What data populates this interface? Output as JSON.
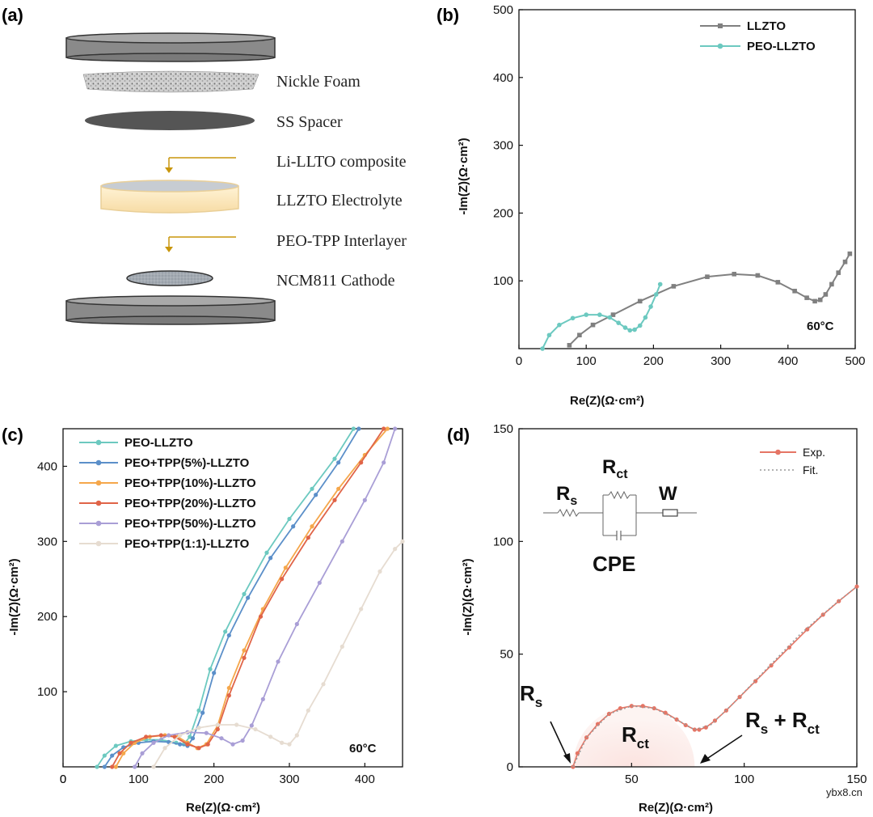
{
  "panels": {
    "a": "(a)",
    "b": "(b)",
    "c": "(c)",
    "d": "(d)"
  },
  "schematic": {
    "labels": [
      "Nickle Foam",
      "SS Spacer",
      "Li-LLTO composite",
      "LLZTO Electrolyte",
      "PEO-TPP Interlayer",
      "NCM811 Cathode"
    ],
    "colors": {
      "case": "#8a8a8a",
      "spacer": "#555555",
      "electrolyte": "#fbe6b8",
      "arrow": "#c8960c",
      "cathode": "#9aa3ad"
    }
  },
  "watermark": "ybx8.cn",
  "chart_data": [
    {
      "id": "b",
      "type": "line",
      "xlabel": "Re(Z)(Ω·cm²)",
      "ylabel": "-Im(Z)(Ω·cm²)",
      "xlim": [
        0,
        500
      ],
      "ylim": [
        0,
        500
      ],
      "xticks": [
        0,
        100,
        200,
        300,
        400,
        500
      ],
      "yticks": [
        100,
        200,
        300,
        400,
        500
      ],
      "annotation": "60°C",
      "legend_position": "top-right",
      "series": [
        {
          "name": "LLZTO",
          "color": "#808080",
          "marker": "square",
          "x": [
            75,
            90,
            110,
            140,
            180,
            230,
            280,
            320,
            355,
            385,
            410,
            428,
            440,
            448,
            456,
            465,
            475,
            485,
            492
          ],
          "y": [
            5,
            20,
            35,
            50,
            70,
            92,
            106,
            110,
            108,
            98,
            85,
            75,
            70,
            72,
            80,
            95,
            112,
            128,
            140
          ]
        },
        {
          "name": "PEO-LLZTO",
          "color": "#6cc9c0",
          "marker": "circle",
          "x": [
            35,
            45,
            60,
            80,
            100,
            120,
            135,
            148,
            158,
            165,
            172,
            180,
            188,
            196,
            204,
            210
          ],
          "y": [
            0,
            20,
            35,
            45,
            50,
            50,
            46,
            38,
            31,
            27,
            28,
            34,
            46,
            62,
            80,
            95
          ]
        }
      ]
    },
    {
      "id": "c",
      "type": "line",
      "xlabel": "Re(Z)(Ω·cm²)",
      "ylabel": "-Im(Z)(Ω·cm²)",
      "xlim": [
        0,
        450
      ],
      "ylim": [
        0,
        450
      ],
      "xticks": [
        0,
        100,
        200,
        300,
        400
      ],
      "yticks": [
        100,
        200,
        300,
        400
      ],
      "annotation": "60°C",
      "legend_position": "top-left",
      "series": [
        {
          "name": "PEO-LLZTO",
          "color": "#6cc9c0",
          "x": [
            45,
            55,
            70,
            90,
            110,
            130,
            150,
            160,
            168,
            180,
            195,
            215,
            240,
            270,
            300,
            330,
            360,
            385
          ],
          "y": [
            0,
            15,
            28,
            34,
            36,
            36,
            32,
            30,
            40,
            75,
            130,
            180,
            230,
            285,
            330,
            370,
            410,
            450
          ]
        },
        {
          "name": "PEO+TPP(5%)-LLZTO",
          "color": "#5b8fc9",
          "x": [
            55,
            65,
            80,
            100,
            120,
            140,
            155,
            165,
            172,
            185,
            200,
            220,
            245,
            275,
            305,
            335,
            365,
            392
          ],
          "y": [
            0,
            15,
            26,
            32,
            34,
            33,
            30,
            28,
            38,
            72,
            125,
            175,
            225,
            278,
            320,
            362,
            405,
            450
          ]
        },
        {
          "name": "PEO+TPP(10%)-LLZTO",
          "color": "#f5a74b",
          "x": [
            70,
            80,
            95,
            115,
            135,
            152,
            165,
            178,
            190,
            205,
            220,
            240,
            265,
            295,
            330,
            365,
            400,
            430
          ],
          "y": [
            0,
            18,
            32,
            40,
            42,
            40,
            32,
            25,
            30,
            55,
            105,
            155,
            210,
            265,
            320,
            370,
            415,
            450
          ]
        },
        {
          "name": "PEO+TPP(20%)-LLZTO",
          "color": "#e06448",
          "x": [
            65,
            75,
            90,
            110,
            130,
            148,
            165,
            180,
            192,
            205,
            220,
            240,
            262,
            290,
            325,
            360,
            395,
            425
          ],
          "y": [
            0,
            18,
            32,
            40,
            42,
            40,
            30,
            25,
            30,
            50,
            95,
            145,
            200,
            250,
            305,
            355,
            405,
            450
          ]
        },
        {
          "name": "PEO+TPP(50%)-LLZTO",
          "color": "#a99ed6",
          "x": [
            95,
            105,
            120,
            140,
            165,
            190,
            210,
            225,
            238,
            250,
            265,
            285,
            310,
            340,
            370,
            400,
            425,
            440
          ],
          "y": [
            0,
            18,
            32,
            42,
            46,
            45,
            38,
            30,
            35,
            55,
            90,
            140,
            190,
            245,
            300,
            355,
            405,
            450
          ]
        },
        {
          "name": "PEO+TPP(1:1)-LLZTO",
          "color": "#e6dcd1",
          "x": [
            120,
            135,
            155,
            180,
            205,
            230,
            255,
            275,
            290,
            300,
            310,
            325,
            345,
            370,
            395,
            420,
            440,
            450
          ],
          "y": [
            0,
            25,
            42,
            52,
            56,
            56,
            50,
            40,
            32,
            30,
            42,
            75,
            110,
            160,
            210,
            260,
            290,
            300
          ]
        }
      ]
    },
    {
      "id": "d",
      "type": "line",
      "xlabel": "Re(Z)(Ω·cm²)",
      "ylabel": "-Im(Z)(Ω·cm²)",
      "xlim": [
        0,
        150
      ],
      "ylim": [
        0,
        150
      ],
      "xticks": [
        50,
        100,
        150
      ],
      "yticks": [
        0,
        50,
        100,
        150
      ],
      "legend_position": "top-right",
      "series": [
        {
          "name": "Exp.",
          "color": "#e57565",
          "marker": "circle",
          "x": [
            24,
            26,
            30,
            35,
            40,
            45,
            50,
            55,
            60,
            65,
            70,
            74,
            78,
            80,
            83,
            87,
            92,
            98,
            105,
            112,
            120,
            128,
            135,
            142,
            150
          ],
          "y": [
            0,
            6,
            13,
            19,
            23.5,
            26,
            27,
            27,
            26,
            24,
            21,
            18.5,
            16.5,
            16.5,
            17.5,
            20.5,
            25,
            31,
            38,
            45,
            53,
            61,
            67.5,
            73.5,
            80
          ]
        },
        {
          "name": "Fit.",
          "color": "#999999",
          "style": "dotted",
          "x": [
            24,
            30,
            40,
            50,
            60,
            70,
            78,
            85,
            95,
            110,
            125,
            140,
            150
          ],
          "y": [
            0,
            13,
            23.5,
            27,
            26,
            21,
            16.5,
            18.5,
            28,
            43.5,
            59,
            72,
            80
          ]
        }
      ],
      "annotations": {
        "rs_left": "R",
        "rs_left_sub": "s",
        "rct_center": "R",
        "rct_center_sub": "ct",
        "rs_rct_main": "R",
        "rs_rct_sub1": "s",
        "rs_rct_plus": " + R",
        "rs_rct_sub2": "ct"
      },
      "circuit": {
        "rs": "R",
        "rs_sub": "s",
        "rct": "R",
        "rct_sub": "ct",
        "w": "W",
        "cpe": "CPE"
      }
    }
  ]
}
